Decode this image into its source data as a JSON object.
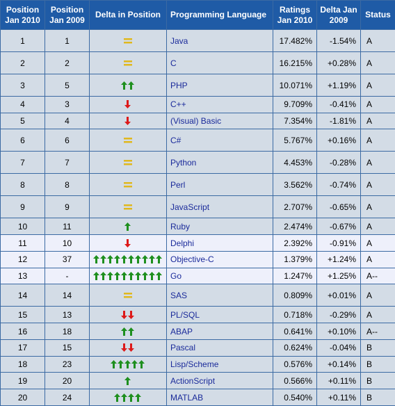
{
  "headers": {
    "pos2010": "Position Jan 2010",
    "pos2009": "Position Jan 2009",
    "delta_pos": "Delta in Position",
    "language": "Programming Language",
    "ratings": "Ratings Jan 2010",
    "delta": "Delta Jan 2009",
    "status": "Status"
  },
  "colors": {
    "header_bg": "#1f5ba6",
    "row_bg": "#d3dce6",
    "highlight_bg": "#eef0fb",
    "up_arrow": "#1e8f1e",
    "down_arrow": "#dd1a1a",
    "same": "#e0b81e",
    "link": "#1a2a9a"
  },
  "rows": [
    {
      "pos2010": "1",
      "pos2009": "1",
      "change": {
        "dir": "same",
        "count": 1
      },
      "language": "Java",
      "rating": "17.482%",
      "delta": "-1.54%",
      "status": "A",
      "highlight": false
    },
    {
      "pos2010": "2",
      "pos2009": "2",
      "change": {
        "dir": "same",
        "count": 1
      },
      "language": "C",
      "rating": "16.215%",
      "delta": "+0.28%",
      "status": "A",
      "highlight": false
    },
    {
      "pos2010": "3",
      "pos2009": "5",
      "change": {
        "dir": "up",
        "count": 2
      },
      "language": "PHP",
      "rating": "10.071%",
      "delta": "+1.19%",
      "status": "A",
      "highlight": false
    },
    {
      "pos2010": "4",
      "pos2009": "3",
      "change": {
        "dir": "down",
        "count": 1
      },
      "language": "C++",
      "rating": "9.709%",
      "delta": "-0.41%",
      "status": "A",
      "highlight": false
    },
    {
      "pos2010": "5",
      "pos2009": "4",
      "change": {
        "dir": "down",
        "count": 1
      },
      "language": "(Visual) Basic",
      "rating": "7.354%",
      "delta": "-1.81%",
      "status": "A",
      "highlight": false
    },
    {
      "pos2010": "6",
      "pos2009": "6",
      "change": {
        "dir": "same",
        "count": 1
      },
      "language": "C#",
      "rating": "5.767%",
      "delta": "+0.16%",
      "status": "A",
      "highlight": false
    },
    {
      "pos2010": "7",
      "pos2009": "7",
      "change": {
        "dir": "same",
        "count": 1
      },
      "language": "Python",
      "rating": "4.453%",
      "delta": "-0.28%",
      "status": "A",
      "highlight": false
    },
    {
      "pos2010": "8",
      "pos2009": "8",
      "change": {
        "dir": "same",
        "count": 1
      },
      "language": "Perl",
      "rating": "3.562%",
      "delta": "-0.74%",
      "status": "A",
      "highlight": false
    },
    {
      "pos2010": "9",
      "pos2009": "9",
      "change": {
        "dir": "same",
        "count": 1
      },
      "language": "JavaScript",
      "rating": "2.707%",
      "delta": "-0.65%",
      "status": "A",
      "highlight": false
    },
    {
      "pos2010": "10",
      "pos2009": "11",
      "change": {
        "dir": "up",
        "count": 1
      },
      "language": "Ruby",
      "rating": "2.474%",
      "delta": "-0.67%",
      "status": "A",
      "highlight": false
    },
    {
      "pos2010": "11",
      "pos2009": "10",
      "change": {
        "dir": "down",
        "count": 1
      },
      "language": "Delphi",
      "rating": "2.392%",
      "delta": "-0.91%",
      "status": "A",
      "highlight": true
    },
    {
      "pos2010": "12",
      "pos2009": "37",
      "change": {
        "dir": "up",
        "count": 10
      },
      "language": "Objective-C",
      "rating": "1.379%",
      "delta": "+1.24%",
      "status": "A",
      "highlight": true
    },
    {
      "pos2010": "13",
      "pos2009": "-",
      "change": {
        "dir": "up",
        "count": 10
      },
      "language": "Go",
      "rating": "1.247%",
      "delta": "+1.25%",
      "status": "A--",
      "highlight": true
    },
    {
      "pos2010": "14",
      "pos2009": "14",
      "change": {
        "dir": "same",
        "count": 1
      },
      "language": "SAS",
      "rating": "0.809%",
      "delta": "+0.01%",
      "status": "A",
      "highlight": false
    },
    {
      "pos2010": "15",
      "pos2009": "13",
      "change": {
        "dir": "down",
        "count": 2
      },
      "language": "PL/SQL",
      "rating": "0.718%",
      "delta": "-0.29%",
      "status": "A",
      "highlight": false
    },
    {
      "pos2010": "16",
      "pos2009": "18",
      "change": {
        "dir": "up",
        "count": 2
      },
      "language": "ABAP",
      "rating": "0.641%",
      "delta": "+0.10%",
      "status": "A--",
      "highlight": false
    },
    {
      "pos2010": "17",
      "pos2009": "15",
      "change": {
        "dir": "down",
        "count": 2
      },
      "language": "Pascal",
      "rating": "0.624%",
      "delta": "-0.04%",
      "status": "B",
      "highlight": false
    },
    {
      "pos2010": "18",
      "pos2009": "23",
      "change": {
        "dir": "up",
        "count": 5
      },
      "language": "Lisp/Scheme",
      "rating": "0.576%",
      "delta": "+0.14%",
      "status": "B",
      "highlight": false
    },
    {
      "pos2010": "19",
      "pos2009": "20",
      "change": {
        "dir": "up",
        "count": 1
      },
      "language": "ActionScript",
      "rating": "0.566%",
      "delta": "+0.11%",
      "status": "B",
      "highlight": false
    },
    {
      "pos2010": "20",
      "pos2009": "24",
      "change": {
        "dir": "up",
        "count": 4
      },
      "language": "MATLAB",
      "rating": "0.540%",
      "delta": "+0.11%",
      "status": "B",
      "highlight": false
    }
  ]
}
